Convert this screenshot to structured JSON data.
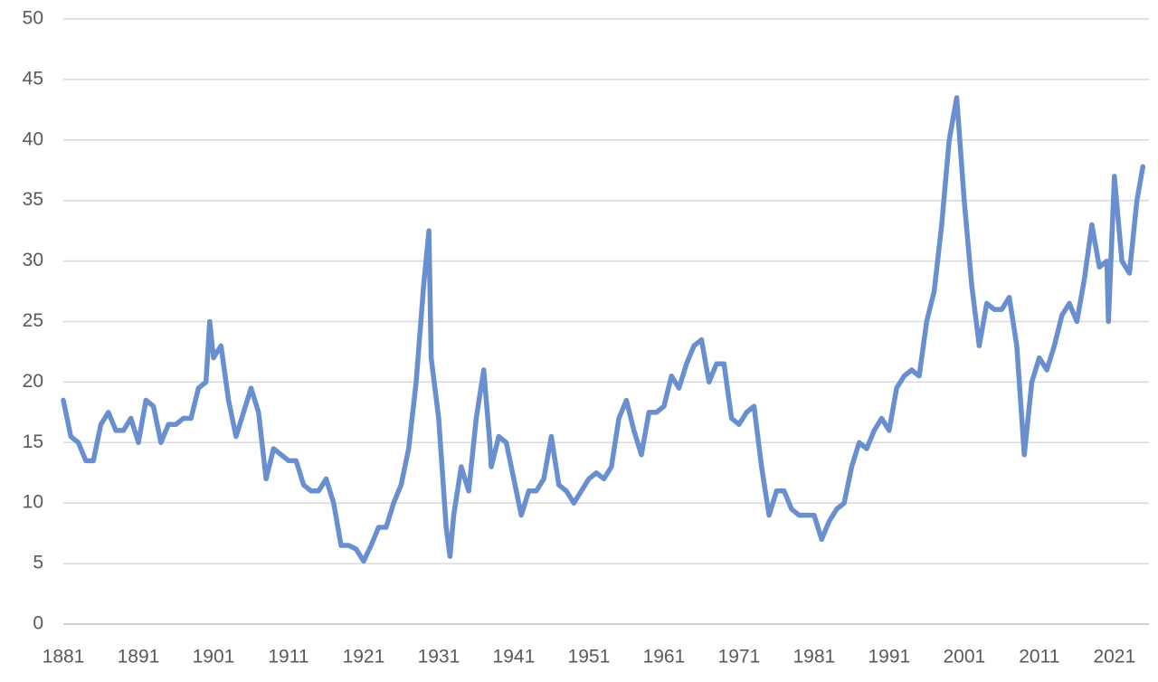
{
  "chart_data": {
    "type": "line",
    "x": [
      1881,
      1882,
      1883,
      1884,
      1885,
      1886,
      1887,
      1888,
      1889,
      1890,
      1891,
      1892,
      1893,
      1894,
      1895,
      1896,
      1897,
      1898,
      1899,
      1900,
      1900.5,
      1901,
      1902,
      1903,
      1904,
      1905,
      1906,
      1907,
      1908,
      1909,
      1910,
      1911,
      1912,
      1913,
      1914,
      1915,
      1916,
      1917,
      1918,
      1919,
      1920,
      1921,
      1922,
      1923,
      1924,
      1925,
      1926,
      1927,
      1928,
      1929,
      1929.7,
      1930,
      1931,
      1932,
      1932.5,
      1933,
      1934,
      1935,
      1936,
      1937,
      1937.8,
      1938,
      1939,
      1940,
      1941,
      1942,
      1943,
      1944,
      1945,
      1946,
      1947,
      1948,
      1949,
      1950,
      1951,
      1952,
      1953,
      1954,
      1955,
      1956,
      1957,
      1958,
      1959,
      1960,
      1961,
      1962,
      1963,
      1964,
      1965,
      1966,
      1967,
      1968,
      1969,
      1970,
      1971,
      1972,
      1973,
      1974,
      1975,
      1976,
      1977,
      1978,
      1979,
      1980,
      1981,
      1982,
      1983,
      1984,
      1985,
      1986,
      1987,
      1988,
      1989,
      1990,
      1991,
      1992,
      1993,
      1994,
      1995,
      1996,
      1997,
      1998,
      1999,
      2000,
      2001,
      2002,
      2003,
      2004,
      2005,
      2006,
      2007,
      2008,
      2009,
      2010,
      2011,
      2012,
      2013,
      2014,
      2015,
      2016,
      2017,
      2018,
      2019,
      2020,
      2020.2,
      2021,
      2022,
      2023,
      2024,
      2024.8
    ],
    "values": [
      18.5,
      15.5,
      15,
      13.5,
      13.5,
      16.5,
      17.5,
      16,
      16,
      17,
      15,
      18.5,
      18,
      15,
      16.5,
      16.5,
      17,
      17,
      19.5,
      20,
      25,
      22,
      23,
      18.5,
      15.5,
      17.5,
      19.5,
      17.5,
      12,
      14.5,
      14,
      13.5,
      13.5,
      11.5,
      11,
      11,
      12,
      10,
      6.5,
      6.5,
      6.2,
      5.2,
      6.5,
      8,
      8,
      10,
      11.5,
      14.5,
      20,
      28,
      32.5,
      22,
      17,
      8,
      5.6,
      9,
      13,
      11,
      17,
      21,
      15,
      13,
      15.5,
      15,
      12,
      9,
      11,
      11,
      12,
      15.5,
      11.5,
      11,
      10,
      11,
      12,
      12.5,
      12,
      13,
      17,
      18.5,
      16,
      14,
      17.5,
      17.5,
      18,
      20.5,
      19.5,
      21.5,
      23,
      23.5,
      20,
      21.5,
      21.5,
      17,
      16.5,
      17.5,
      18,
      13,
      9,
      11,
      11,
      9.5,
      9,
      9,
      9,
      7,
      8.5,
      9.5,
      10,
      13,
      15,
      14.5,
      16,
      17,
      16,
      19.5,
      20.5,
      21,
      20.5,
      25,
      27.5,
      33,
      40,
      43.5,
      35,
      28,
      23,
      26.5,
      26,
      26,
      27,
      23,
      14,
      20,
      22,
      21,
      23,
      25.5,
      26.5,
      25,
      28.5,
      33,
      29.5,
      30,
      25,
      37,
      30,
      29,
      35,
      37.8
    ],
    "color": "#6a8fcf",
    "xlim": [
      1881,
      2025
    ],
    "xticks": [
      1881,
      1891,
      1901,
      1911,
      1921,
      1931,
      1941,
      1951,
      1961,
      1971,
      1981,
      1991,
      2001,
      2011,
      2021
    ],
    "ylim": [
      0,
      50
    ],
    "yticks": [
      0,
      5,
      10,
      15,
      20,
      25,
      30,
      35,
      40,
      45,
      50
    ],
    "grid": true
  }
}
